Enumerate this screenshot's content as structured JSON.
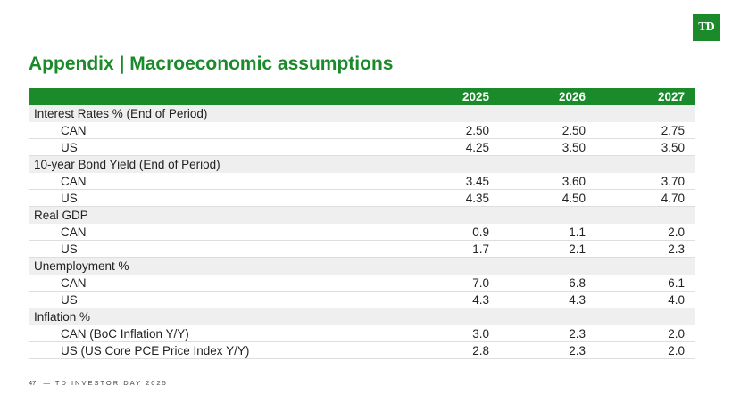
{
  "logo_text": "TD",
  "title": "Appendix | Macroeconomic assumptions",
  "header": {
    "label": "",
    "years": [
      "2025",
      "2026",
      "2027"
    ]
  },
  "rows": [
    {
      "type": "section",
      "label": "Interest Rates % (End of Period)"
    },
    {
      "type": "item",
      "label": "CAN",
      "values": [
        "2.50",
        "2.50",
        "2.75"
      ]
    },
    {
      "type": "item",
      "label": "US",
      "values": [
        "4.25",
        "3.50",
        "3.50"
      ]
    },
    {
      "type": "section",
      "label": "10-year Bond Yield (End of Period)"
    },
    {
      "type": "item",
      "label": "CAN",
      "values": [
        "3.45",
        "3.60",
        "3.70"
      ]
    },
    {
      "type": "item",
      "label": "US",
      "values": [
        "4.35",
        "4.50",
        "4.70"
      ]
    },
    {
      "type": "section",
      "label": "Real GDP"
    },
    {
      "type": "item",
      "label": "CAN",
      "values": [
        "0.9",
        "1.1",
        "2.0"
      ]
    },
    {
      "type": "item",
      "label": "US",
      "values": [
        "1.7",
        "2.1",
        "2.3"
      ]
    },
    {
      "type": "section",
      "label": "Unemployment %"
    },
    {
      "type": "item",
      "label": "CAN",
      "values": [
        "7.0",
        "6.8",
        "6.1"
      ]
    },
    {
      "type": "item",
      "label": "US",
      "values": [
        "4.3",
        "4.3",
        "4.0"
      ]
    },
    {
      "type": "section",
      "label": "Inflation %"
    },
    {
      "type": "item",
      "label": "CAN (BoC Inflation Y/Y)",
      "values": [
        "3.0",
        "2.3",
        "2.0"
      ]
    },
    {
      "type": "item",
      "label": "US (US Core PCE Price Index Y/Y)",
      "values": [
        "2.8",
        "2.3",
        "2.0"
      ]
    }
  ],
  "footer": {
    "page": "47",
    "text": "— TD INVESTOR DAY 2025"
  },
  "colors": {
    "brand_green": "#1a8a2a",
    "section_bg": "#efefef"
  }
}
